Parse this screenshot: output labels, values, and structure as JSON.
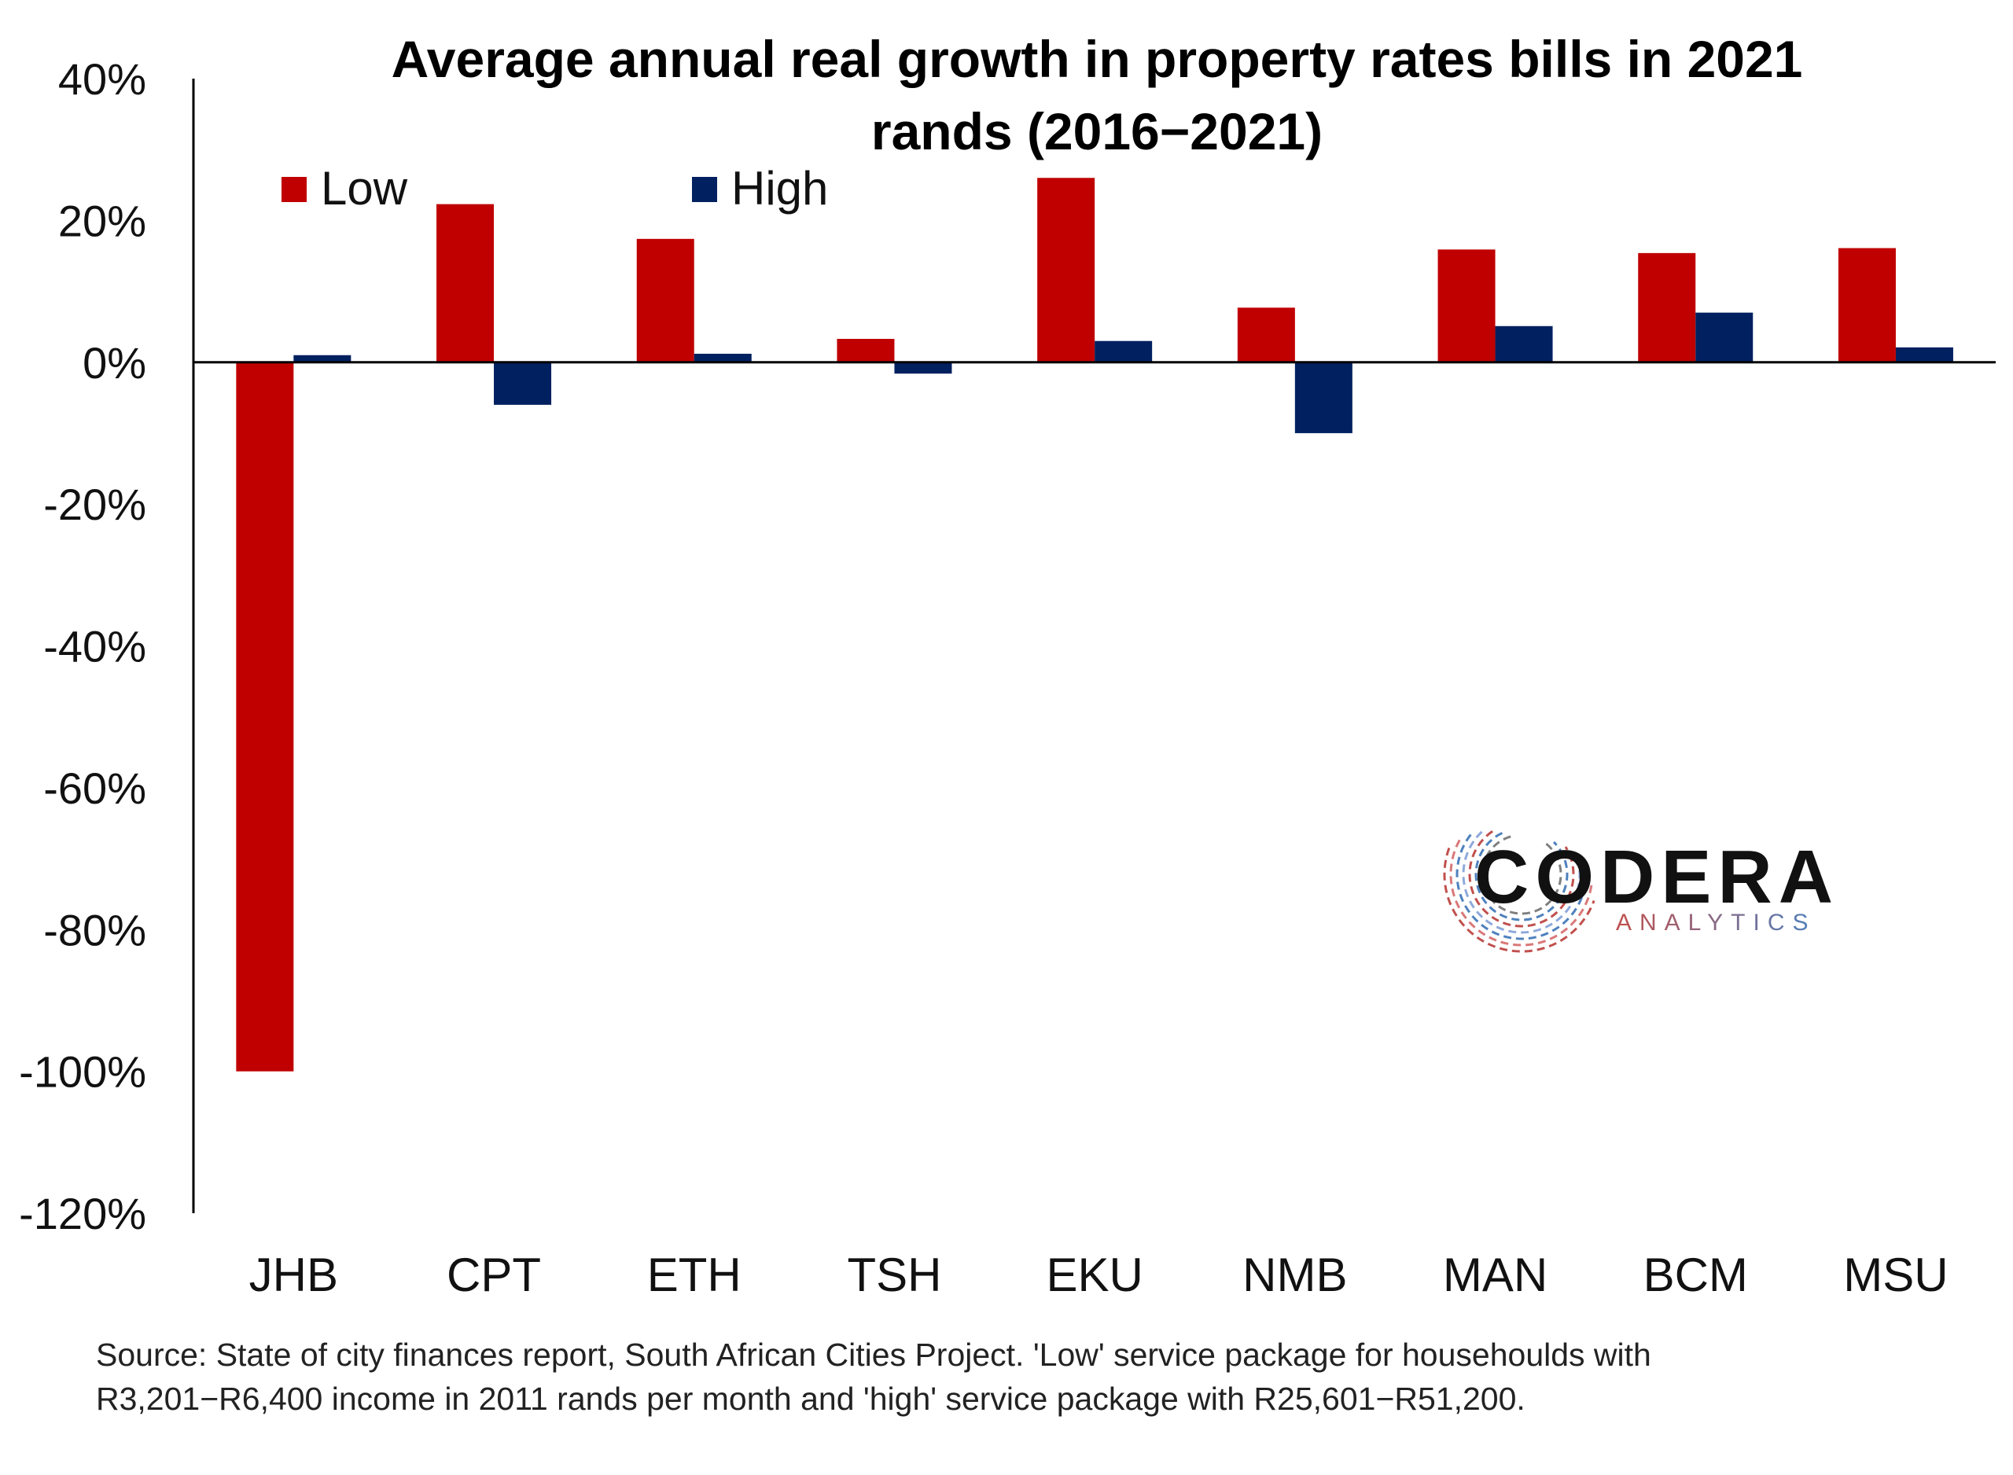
{
  "chart_data": {
    "type": "bar",
    "title_lines": [
      "Average annual real growth in property rates bills in 2021",
      "rands (2016−2021)"
    ],
    "categories": [
      "JHB",
      "CPT",
      "ETH",
      "TSH",
      "EKU",
      "NMB",
      "MAN",
      "BCM",
      "MSU"
    ],
    "series": [
      {
        "name": "Low",
        "color": "#C00000",
        "values": [
          -100,
          22.3,
          17.4,
          3.3,
          26,
          7.7,
          15.9,
          15.4,
          16.1
        ]
      },
      {
        "name": "High",
        "color": "#002060",
        "values": [
          1.0,
          -6.0,
          1.2,
          -1.6,
          3.0,
          -10.0,
          5.1,
          7.0,
          2.1
        ]
      }
    ],
    "ylim": [
      -120,
      40
    ],
    "yticks": [
      40,
      20,
      0,
      -20,
      -40,
      -60,
      -80,
      -100,
      -120
    ],
    "ytick_labels": [
      "40%",
      "20%",
      "0%",
      "-20%",
      "-40%",
      "-60%",
      "-80%",
      "-100%",
      "-120%"
    ],
    "xlabel": "",
    "ylabel": "",
    "grid": false,
    "legend_position": "top-left"
  },
  "source_lines": [
    "Source: State of city finances report, South African Cities Project. 'Low' service package for househoulds with",
    "R3,201−R6,400 income in 2011 rands per month and 'high' service package with R25,601−R51,200."
  ],
  "logo": {
    "main": "CODERA",
    "sub": "ANALYTICS",
    "main_color": "#111111",
    "sub_color_left": "#C0504D",
    "sub_color_right": "#4F81BD"
  }
}
